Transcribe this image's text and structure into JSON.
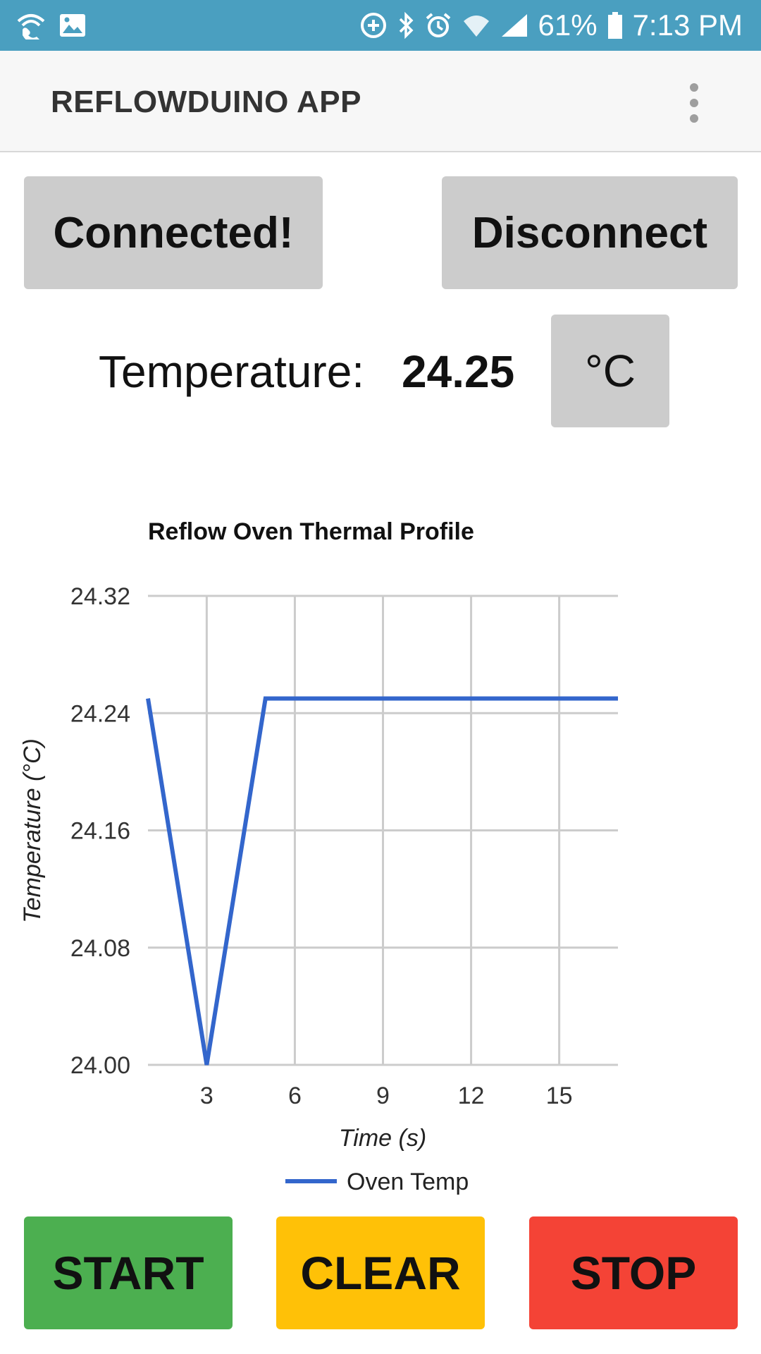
{
  "status_bar": {
    "battery_percent": "61%",
    "time": "7:13 PM",
    "icons": [
      "wifi-call-icon",
      "image-icon",
      "data-saver-icon",
      "bluetooth-icon",
      "alarm-icon",
      "wifi-icon",
      "signal-icon",
      "battery-icon"
    ]
  },
  "app_bar": {
    "title": "REFLOWDUINO APP",
    "menu_icon": "overflow-menu-icon"
  },
  "controls": {
    "connect_label": "Connected!",
    "disconnect_label": "Disconnect",
    "temperature_label": "Temperature:",
    "temperature_value": "24.25",
    "unit_label": "°C"
  },
  "chart_data": {
    "type": "line",
    "title": "Reflow Oven Thermal Profile",
    "xlabel": "Time (s)",
    "ylabel": "Temperature (°C)",
    "x_ticks": [
      "3",
      "6",
      "9",
      "12",
      "15"
    ],
    "y_ticks": [
      "24.32",
      "24.24",
      "24.16",
      "24.08",
      "24.00"
    ],
    "xlim": [
      1,
      17
    ],
    "ylim": [
      24.0,
      24.32
    ],
    "grid": true,
    "legend_position": "bottom",
    "series": [
      {
        "name": "Oven Temp",
        "color": "#3366cc",
        "x": [
          1,
          3,
          5,
          17
        ],
        "values": [
          24.25,
          24.0,
          24.25,
          24.25
        ]
      }
    ]
  },
  "actions": {
    "start_label": "START",
    "clear_label": "CLEAR",
    "stop_label": "STOP",
    "start_color": "#4caf50",
    "clear_color": "#ffc107",
    "stop_color": "#f44336"
  }
}
